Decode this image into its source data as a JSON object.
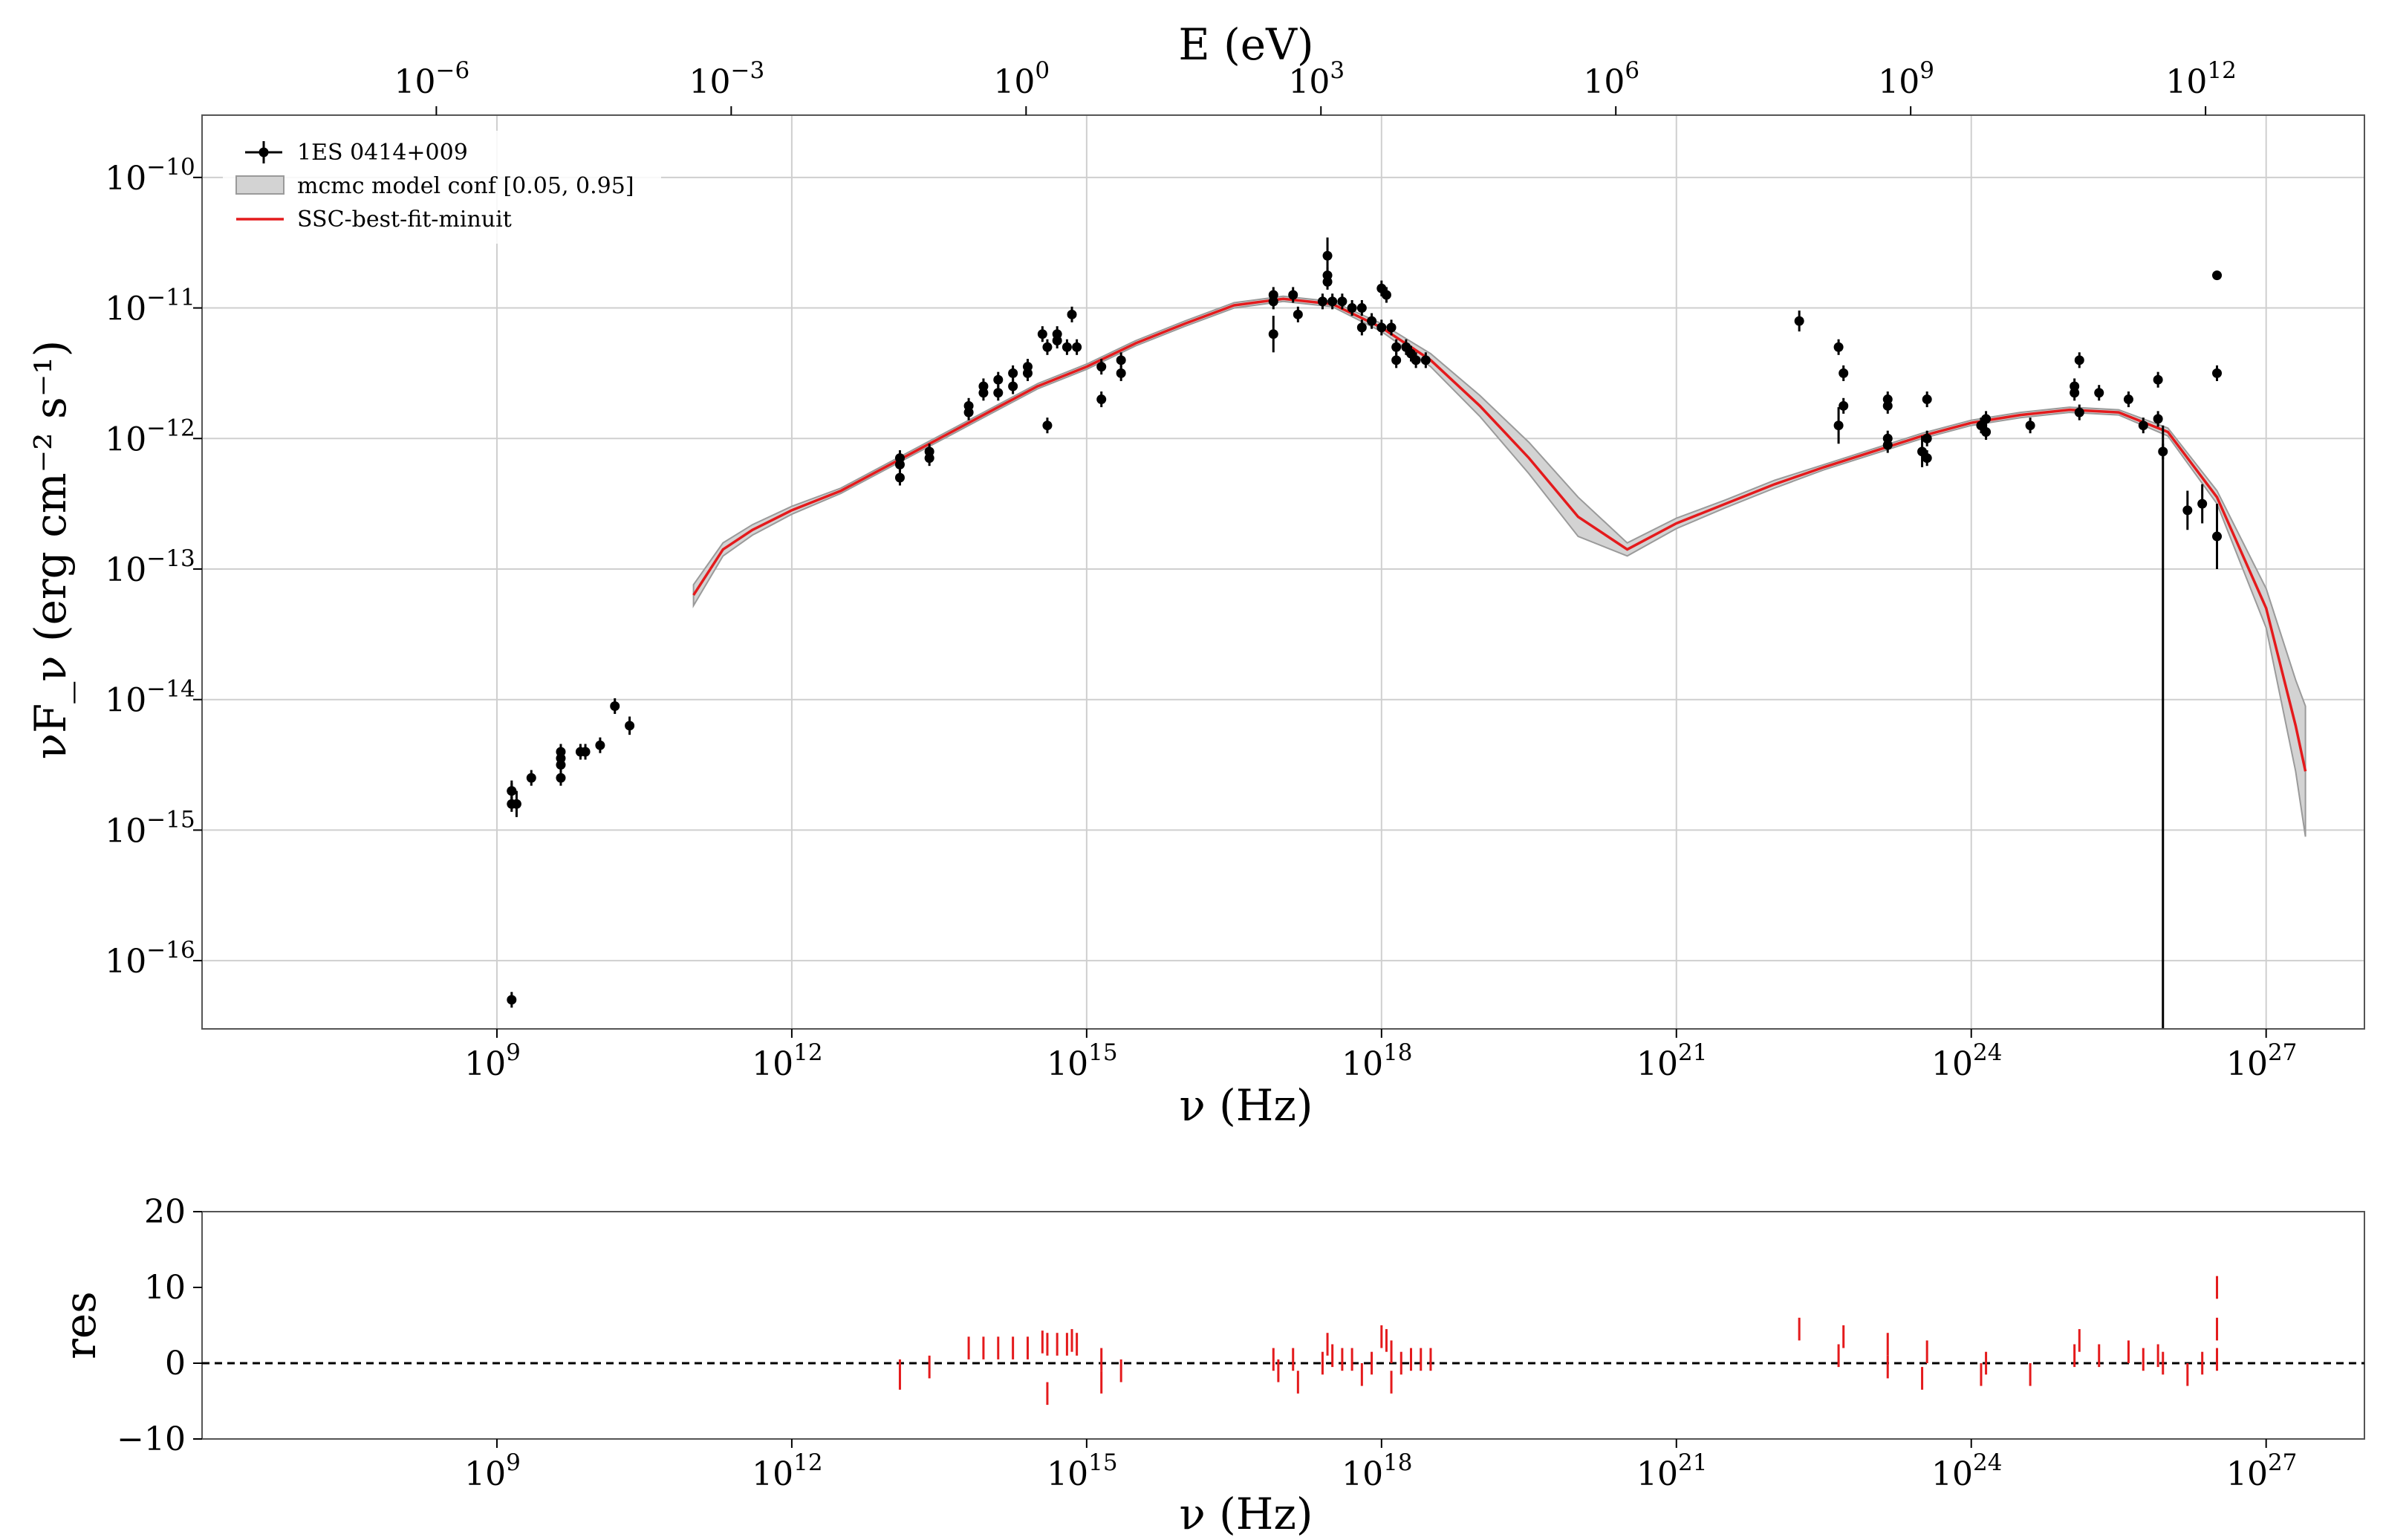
{
  "chart_data": [
    {
      "type": "scatter",
      "xlabel_bottom": "ν  (Hz)",
      "xlabel_top": "E (eV)",
      "ylabel": "νF_ν  (erg cm⁻² s⁻¹)",
      "x_scale": "log",
      "y_scale": "log",
      "xlim": [
        1000000.0,
        1e+28
      ],
      "ylim": [
        3e-17,
        3e-10
      ],
      "grid": true,
      "legend_position": "top-left",
      "x_ticks": [
        {
          "base": "10",
          "exp": "9",
          "v": 9
        },
        {
          "base": "10",
          "exp": "12",
          "v": 12
        },
        {
          "base": "10",
          "exp": "15",
          "v": 15
        },
        {
          "base": "10",
          "exp": "18",
          "v": 18
        },
        {
          "base": "10",
          "exp": "21",
          "v": 21
        },
        {
          "base": "10",
          "exp": "24",
          "v": 24
        },
        {
          "base": "10",
          "exp": "27",
          "v": 27
        }
      ],
      "top_ticks": [
        {
          "base": "10",
          "exp": "−6",
          "v": -6
        },
        {
          "base": "10",
          "exp": "−3",
          "v": -3
        },
        {
          "base": "10",
          "exp": "0",
          "v": 0
        },
        {
          "base": "10",
          "exp": "3",
          "v": 3
        },
        {
          "base": "10",
          "exp": "6",
          "v": 6
        },
        {
          "base": "10",
          "exp": "9",
          "v": 9
        },
        {
          "base": "10",
          "exp": "12",
          "v": 12
        }
      ],
      "y_ticks": [
        {
          "base": "10",
          "exp": "−10",
          "v": -10
        },
        {
          "base": "10",
          "exp": "−11",
          "v": -11
        },
        {
          "base": "10",
          "exp": "−12",
          "v": -12
        },
        {
          "base": "10",
          "exp": "−13",
          "v": -13
        },
        {
          "base": "10",
          "exp": "−14",
          "v": -14
        },
        {
          "base": "10",
          "exp": "−15",
          "v": -15
        },
        {
          "base": "10",
          "exp": "−16",
          "v": -16
        }
      ],
      "legend": [
        {
          "label": "1ES 0414+009",
          "kind": "errorbar"
        },
        {
          "label": "mcmc model conf [0.05, 0.95]",
          "kind": "band"
        },
        {
          "label": "SSC-best-fit-minuit",
          "kind": "line"
        }
      ],
      "series": [
        {
          "name": "1ES 0414+009",
          "color": "#000000",
          "points_log10": [
            [
              9.15,
              -14.7
            ],
            [
              9.15,
              -14.8
            ],
            [
              9.15,
              -14.7,
              0.08
            ],
            [
              9.15,
              -16.3,
              0.06
            ],
            [
              9.2,
              -14.8,
              0.1
            ],
            [
              9.35,
              -14.6
            ],
            [
              9.65,
              -14.45
            ],
            [
              9.65,
              -14.5
            ],
            [
              9.65,
              -14.4
            ],
            [
              9.65,
              -14.6
            ],
            [
              9.85,
              -14.4
            ],
            [
              9.9,
              -14.4
            ],
            [
              10.05,
              -14.35
            ],
            [
              10.2,
              -14.05,
              0.06
            ],
            [
              10.35,
              -14.2,
              0.07
            ],
            [
              13.1,
              -12.15
            ],
            [
              13.1,
              -12.3
            ],
            [
              13.1,
              -12.2
            ],
            [
              13.4,
              -12.1
            ],
            [
              13.4,
              -12.15
            ],
            [
              13.8,
              -11.75
            ],
            [
              13.8,
              -11.8
            ],
            [
              13.95,
              -11.6
            ],
            [
              13.95,
              -11.65
            ],
            [
              14.1,
              -11.55
            ],
            [
              14.1,
              -11.65
            ],
            [
              14.25,
              -11.5
            ],
            [
              14.25,
              -11.6
            ],
            [
              14.4,
              -11.45
            ],
            [
              14.4,
              -11.5
            ],
            [
              14.55,
              -11.2
            ],
            [
              14.6,
              -11.3
            ],
            [
              14.6,
              -11.9
            ],
            [
              14.7,
              -11.2
            ],
            [
              14.7,
              -11.25
            ],
            [
              14.8,
              -11.3
            ],
            [
              14.85,
              -11.05
            ],
            [
              14.9,
              -11.3
            ],
            [
              15.15,
              -11.45
            ],
            [
              15.15,
              -11.7
            ],
            [
              15.35,
              -11.4
            ],
            [
              15.35,
              -11.5
            ],
            [
              16.9,
              -10.9
            ],
            [
              16.9,
              -10.95
            ],
            [
              16.9,
              -11.2,
              0.14
            ],
            [
              17.1,
              -10.9
            ],
            [
              17.15,
              -11.05
            ],
            [
              17.4,
              -10.95
            ],
            [
              17.45,
              -10.6,
              0.14
            ],
            [
              17.45,
              -10.75
            ],
            [
              17.45,
              -10.8
            ],
            [
              17.5,
              -10.95
            ],
            [
              17.6,
              -10.95
            ],
            [
              17.7,
              -11.0
            ],
            [
              17.8,
              -11.0
            ],
            [
              17.8,
              -11.15
            ],
            [
              17.9,
              -11.1
            ],
            [
              18.0,
              -11.15
            ],
            [
              18.0,
              -10.85
            ],
            [
              18.05,
              -10.9
            ],
            [
              18.1,
              -11.15
            ],
            [
              18.15,
              -11.3
            ],
            [
              18.15,
              -11.4
            ],
            [
              18.25,
              -11.3
            ],
            [
              18.3,
              -11.35
            ],
            [
              18.35,
              -11.4
            ],
            [
              18.45,
              -11.4
            ],
            [
              22.25,
              -11.1,
              0.08
            ],
            [
              22.65,
              -11.3
            ],
            [
              22.7,
              -11.5
            ],
            [
              22.7,
              -11.75
            ],
            [
              22.65,
              -11.9,
              0.14
            ],
            [
              23.15,
              -11.7
            ],
            [
              23.15,
              -11.75
            ],
            [
              23.15,
              -12.0
            ],
            [
              23.15,
              -12.05
            ],
            [
              23.5,
              -12.1,
              0.12
            ],
            [
              23.55,
              -11.7
            ],
            [
              23.55,
              -12.0
            ],
            [
              23.55,
              -12.15
            ],
            [
              24.1,
              -11.9
            ],
            [
              24.15,
              -11.85
            ],
            [
              24.15,
              -11.95
            ],
            [
              24.6,
              -11.9
            ],
            [
              25.05,
              -11.6
            ],
            [
              25.05,
              -11.65
            ],
            [
              25.1,
              -11.4
            ],
            [
              25.1,
              -11.8
            ],
            [
              25.3,
              -11.65
            ],
            [
              25.6,
              -11.7
            ],
            [
              25.75,
              -11.9
            ],
            [
              25.9,
              -11.55
            ],
            [
              25.9,
              -11.85
            ],
            [
              25.95,
              -12.1
            ],
            [
              26.2,
              -12.55,
              0.15
            ],
            [
              26.35,
              -12.5,
              0.15
            ],
            [
              26.5,
              -10.75,
              0.03
            ],
            [
              26.5,
              -11.5,
              0.06
            ],
            [
              26.5,
              -12.75,
              0.25
            ]
          ],
          "upper_limit_line": [
            25.95,
            -11.9
          ]
        },
        {
          "name": "SSC-best-fit-minuit",
          "color": "#e41a1c",
          "curve_log10": [
            [
              11.0,
              -13.2
            ],
            [
              11.3,
              -12.85
            ],
            [
              11.6,
              -12.7
            ],
            [
              12.0,
              -12.55
            ],
            [
              12.5,
              -12.4
            ],
            [
              13.0,
              -12.2
            ],
            [
              13.5,
              -12.0
            ],
            [
              14.0,
              -11.8
            ],
            [
              14.5,
              -11.6
            ],
            [
              15.0,
              -11.45
            ],
            [
              15.5,
              -11.27
            ],
            [
              16.0,
              -11.12
            ],
            [
              16.5,
              -10.98
            ],
            [
              17.0,
              -10.93
            ],
            [
              17.5,
              -10.97
            ],
            [
              18.0,
              -11.15
            ],
            [
              18.5,
              -11.4
            ],
            [
              19.0,
              -11.75
            ],
            [
              19.5,
              -12.15
            ],
            [
              20.0,
              -12.6
            ],
            [
              20.5,
              -12.85
            ],
            [
              21.0,
              -12.65
            ],
            [
              21.5,
              -12.5
            ],
            [
              22.0,
              -12.35
            ],
            [
              22.5,
              -12.22
            ],
            [
              23.0,
              -12.1
            ],
            [
              23.5,
              -11.98
            ],
            [
              24.0,
              -11.88
            ],
            [
              24.5,
              -11.82
            ],
            [
              25.0,
              -11.78
            ],
            [
              25.5,
              -11.8
            ],
            [
              26.0,
              -11.95
            ],
            [
              26.5,
              -12.45
            ],
            [
              27.0,
              -13.3
            ],
            [
              27.3,
              -14.2
            ],
            [
              27.4,
              -14.55
            ]
          ],
          "band_half_width_log10": [
            0.08,
            0.05,
            0.04,
            0.03,
            0.02,
            0.02,
            0.02,
            0.02,
            0.02,
            0.02,
            0.02,
            0.02,
            0.02,
            0.02,
            0.02,
            0.03,
            0.05,
            0.08,
            0.12,
            0.15,
            0.05,
            0.04,
            0.03,
            0.03,
            0.02,
            0.02,
            0.02,
            0.02,
            0.02,
            0.02,
            0.02,
            0.03,
            0.05,
            0.15,
            0.35,
            0.5
          ]
        }
      ]
    },
    {
      "type": "scatter",
      "xlabel": "ν  (Hz)",
      "ylabel": "res",
      "x_scale": "log",
      "xlim": [
        1000000.0,
        1e+28
      ],
      "ylim": [
        -10,
        20
      ],
      "y_ticks": [
        {
          "label": "20",
          "v": 20
        },
        {
          "label": "10",
          "v": 10
        },
        {
          "label": "0",
          "v": 0
        },
        {
          "label": "−10",
          "v": -10
        }
      ],
      "x_ticks": [
        {
          "base": "10",
          "exp": "9",
          "v": 9
        },
        {
          "base": "10",
          "exp": "12",
          "v": 12
        },
        {
          "base": "10",
          "exp": "15",
          "v": 15
        },
        {
          "base": "10",
          "exp": "18",
          "v": 18
        },
        {
          "base": "10",
          "exp": "21",
          "v": 21
        },
        {
          "base": "10",
          "exp": "24",
          "v": 24
        },
        {
          "base": "10",
          "exp": "27",
          "v": 27
        }
      ],
      "reference_line": 0,
      "color": "#e41a1c",
      "residuals": [
        [
          13.1,
          -1.5,
          2
        ],
        [
          13.4,
          -0.5,
          1.5
        ],
        [
          13.8,
          2,
          1.5
        ],
        [
          13.95,
          2,
          1.5
        ],
        [
          14.1,
          2,
          1.5
        ],
        [
          14.25,
          2,
          1.5
        ],
        [
          14.4,
          2,
          1.5
        ],
        [
          14.55,
          2.8,
          1.5
        ],
        [
          14.6,
          2.5,
          1.5
        ],
        [
          14.6,
          -4,
          1.5
        ],
        [
          14.7,
          2.5,
          1.5
        ],
        [
          14.8,
          2.5,
          1.5
        ],
        [
          14.85,
          3,
          1.5
        ],
        [
          14.9,
          2.5,
          1.5
        ],
        [
          15.15,
          0.5,
          1.5
        ],
        [
          15.15,
          -2.5,
          1.5
        ],
        [
          15.35,
          -1,
          1.5
        ],
        [
          16.9,
          0.5,
          1.5
        ],
        [
          16.95,
          -1,
          1.5
        ],
        [
          17.1,
          0.5,
          1.5
        ],
        [
          17.15,
          -2.5,
          1.5
        ],
        [
          17.4,
          0,
          1.5
        ],
        [
          17.45,
          2.5,
          1.5
        ],
        [
          17.5,
          1,
          1.5
        ],
        [
          17.6,
          0.5,
          1.5
        ],
        [
          17.7,
          0.5,
          1.5
        ],
        [
          17.8,
          -1.5,
          1.5
        ],
        [
          17.9,
          0,
          1.5
        ],
        [
          18.0,
          3.5,
          1.5
        ],
        [
          18.05,
          3,
          1.5
        ],
        [
          18.1,
          1.5,
          1.5
        ],
        [
          18.1,
          -2.5,
          1.5
        ],
        [
          18.2,
          0,
          1.5
        ],
        [
          18.3,
          0.5,
          1.5
        ],
        [
          18.4,
          0.5,
          1.5
        ],
        [
          18.5,
          0.5,
          1.5
        ],
        [
          22.25,
          4.5,
          1.5
        ],
        [
          22.65,
          1,
          1.5
        ],
        [
          22.7,
          3.5,
          1.5
        ],
        [
          23.15,
          2.5,
          1.5
        ],
        [
          23.15,
          -0.5,
          1.5
        ],
        [
          23.5,
          -2,
          1.5
        ],
        [
          23.55,
          1.5,
          1.5
        ],
        [
          24.1,
          -1.5,
          1.5
        ],
        [
          24.15,
          0,
          1.5
        ],
        [
          24.6,
          -1.5,
          1.5
        ],
        [
          25.05,
          1,
          1.5
        ],
        [
          25.1,
          3,
          1.5
        ],
        [
          25.3,
          1,
          1.5
        ],
        [
          25.6,
          1.5,
          1.5
        ],
        [
          25.75,
          0.5,
          1.5
        ],
        [
          25.9,
          1,
          1.5
        ],
        [
          25.95,
          0,
          1.5
        ],
        [
          26.2,
          -1.5,
          1.5
        ],
        [
          26.35,
          0,
          1.5
        ],
        [
          26.5,
          4.5,
          1.5
        ],
        [
          26.5,
          10,
          1.5
        ],
        [
          26.5,
          0.5,
          1.5
        ]
      ]
    }
  ]
}
